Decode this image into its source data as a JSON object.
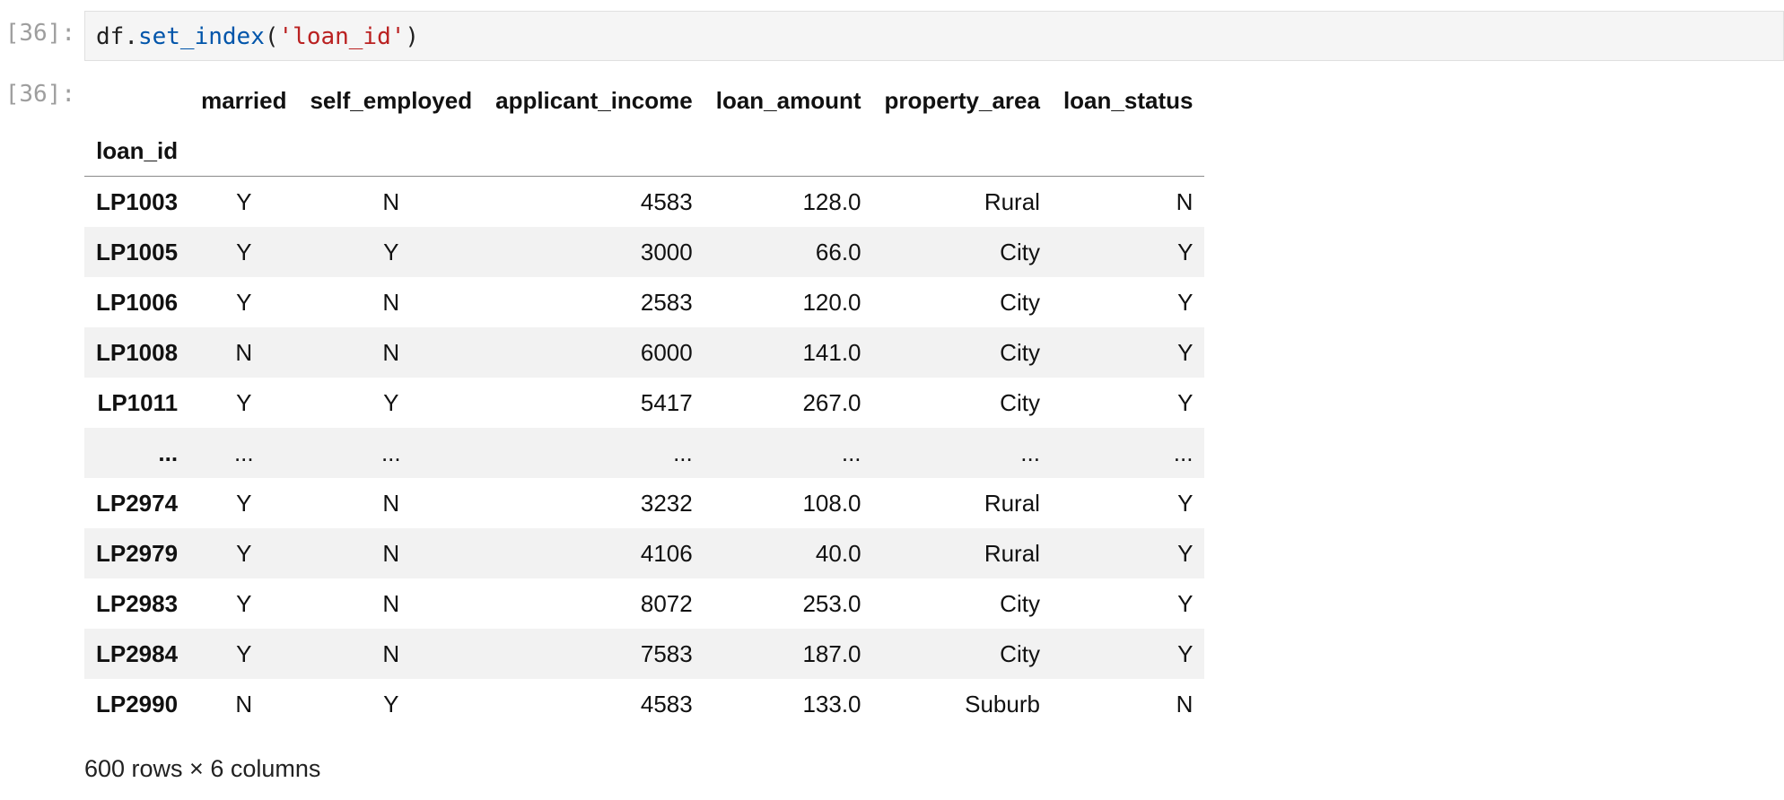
{
  "input_prompt": "[36]:",
  "output_prompt": "[36]:",
  "code": {
    "obj": "df",
    "dot": ".",
    "method": "set_index",
    "open": "(",
    "arg": "'loan_id'",
    "close": ")"
  },
  "table": {
    "columns": [
      "married",
      "self_employed",
      "applicant_income",
      "loan_amount",
      "property_area",
      "loan_status"
    ],
    "index_name": "loan_id",
    "rows": [
      {
        "index": "LP1003",
        "cells": [
          "Y",
          "N",
          "4583",
          "128.0",
          "Rural",
          "N"
        ]
      },
      {
        "index": "LP1005",
        "cells": [
          "Y",
          "Y",
          "3000",
          "66.0",
          "City",
          "Y"
        ]
      },
      {
        "index": "LP1006",
        "cells": [
          "Y",
          "N",
          "2583",
          "120.0",
          "City",
          "Y"
        ]
      },
      {
        "index": "LP1008",
        "cells": [
          "N",
          "N",
          "6000",
          "141.0",
          "City",
          "Y"
        ]
      },
      {
        "index": "LP1011",
        "cells": [
          "Y",
          "Y",
          "5417",
          "267.0",
          "City",
          "Y"
        ]
      },
      {
        "index": "...",
        "cells": [
          "...",
          "...",
          "...",
          "...",
          "...",
          "..."
        ]
      },
      {
        "index": "LP2974",
        "cells": [
          "Y",
          "N",
          "3232",
          "108.0",
          "Rural",
          "Y"
        ]
      },
      {
        "index": "LP2979",
        "cells": [
          "Y",
          "N",
          "4106",
          "40.0",
          "Rural",
          "Y"
        ]
      },
      {
        "index": "LP2983",
        "cells": [
          "Y",
          "N",
          "8072",
          "253.0",
          "City",
          "Y"
        ]
      },
      {
        "index": "LP2984",
        "cells": [
          "Y",
          "N",
          "7583",
          "187.0",
          "City",
          "Y"
        ]
      },
      {
        "index": "LP2990",
        "cells": [
          "N",
          "Y",
          "4583",
          "133.0",
          "Suburb",
          "N"
        ]
      }
    ]
  },
  "shape_text": "600 rows × 6 columns"
}
